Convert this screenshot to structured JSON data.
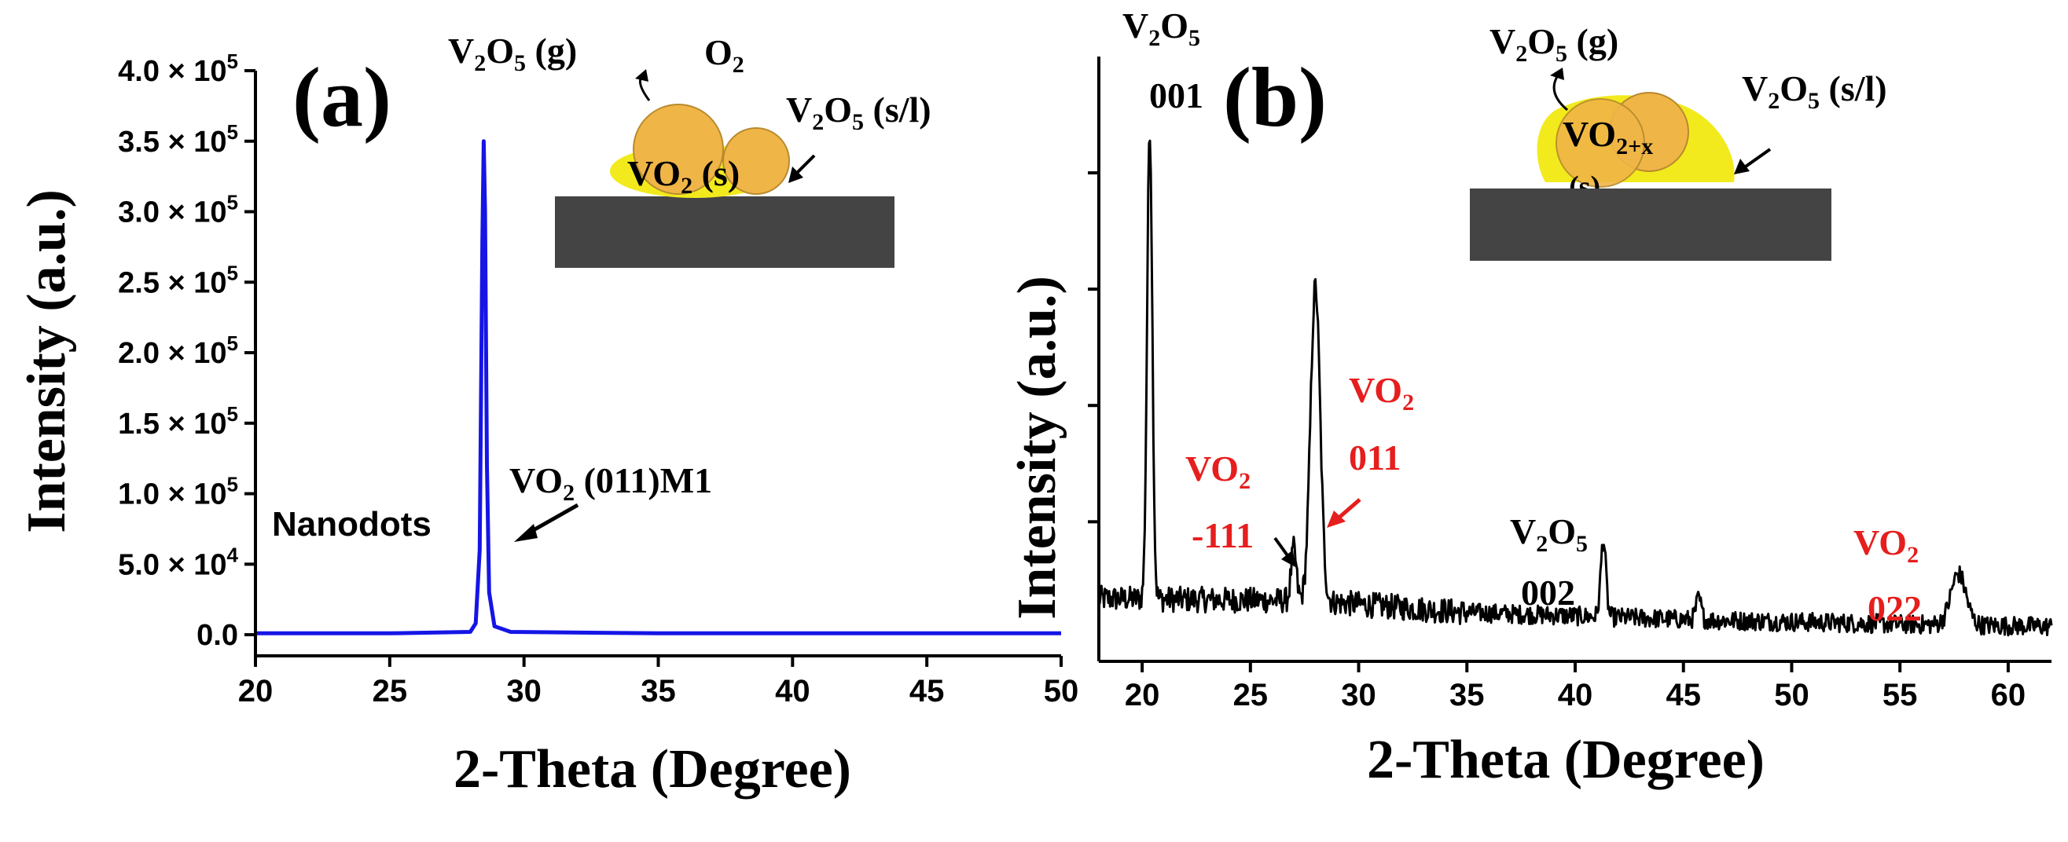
{
  "chart_data": [
    {
      "type": "line",
      "panel_label": "(a)",
      "xlabel": "2-Theta (Degree)",
      "ylabel": "Intensity (a.u.)",
      "xlim": [
        20,
        50
      ],
      "ylim": [
        -15000,
        400000
      ],
      "xticks": [
        20,
        25,
        30,
        35,
        40,
        45,
        50
      ],
      "yticks": [
        {
          "value": 0,
          "mant": "0.0",
          "exp": ""
        },
        {
          "value": 50000,
          "mant": "5.0 × 10",
          "exp": "4"
        },
        {
          "value": 100000,
          "mant": "1.0 × 10",
          "exp": "5"
        },
        {
          "value": 150000,
          "mant": "1.5 × 10",
          "exp": "5"
        },
        {
          "value": 200000,
          "mant": "2.0 × 10",
          "exp": "5"
        },
        {
          "value": 250000,
          "mant": "2.5 × 10",
          "exp": "5"
        },
        {
          "value": 300000,
          "mant": "3.0 × 10",
          "exp": "5"
        },
        {
          "value": 350000,
          "mant": "3.5 × 10",
          "exp": "5"
        },
        {
          "value": 400000,
          "mant": "4.0 × 10",
          "exp": "5"
        }
      ],
      "series": [
        {
          "name": "Nanodots",
          "color": "#1515e6",
          "x": [
            20,
            25,
            28.0,
            28.2,
            28.35,
            28.45,
            28.5,
            28.55,
            28.62,
            28.7,
            28.9,
            29.5,
            35,
            40,
            45,
            50
          ],
          "y": [
            1000,
            1000,
            2000,
            8000,
            60000,
            280000,
            350000,
            300000,
            120000,
            30000,
            6000,
            2000,
            1000,
            1000,
            1000,
            1000
          ]
        }
      ],
      "annotations": [
        {
          "id": "nanodots",
          "text": "Nanodots"
        },
        {
          "id": "peak",
          "base": "VO",
          "sub": "2",
          "rest": " (011)M1",
          "x": 28.5
        }
      ],
      "inset": {
        "gas": {
          "base": "V",
          "sub1": "2",
          "mid": "O",
          "sub2": "5",
          "rest": " (g)"
        },
        "oxygen": {
          "base": "O",
          "sub": "2"
        },
        "liquid": {
          "base": "V",
          "sub1": "2",
          "mid": "O",
          "sub2": "5",
          "rest": " (s/l)"
        },
        "particle": {
          "base": "VO",
          "sub": "2",
          "rest": " (s)"
        }
      },
      "colors": {
        "substrate": "#444444",
        "shell": "#f2ea1c",
        "particle": "#f0b547"
      }
    },
    {
      "type": "line",
      "panel_label": "(b)",
      "xlabel": "2-Theta (Degree)",
      "ylabel": "Intensity (a.u.)",
      "xlim": [
        18,
        62
      ],
      "ylim": [
        -1,
        25
      ],
      "xticks": [
        20,
        25,
        30,
        35,
        40,
        45,
        50,
        55,
        60
      ],
      "ytick_values": [
        5,
        10,
        15,
        20
      ],
      "series": [
        {
          "name": "pattern",
          "color": "#000000",
          "baseline": [
            [
              18,
              1.7
            ],
            [
              28,
              1.6
            ],
            [
              35,
              1.1
            ],
            [
              45,
              0.8
            ],
            [
              55,
              0.6
            ],
            [
              62,
              0.5
            ]
          ],
          "peaks": [
            {
              "center": 20.35,
              "height": 20.3,
              "width": 0.12
            },
            {
              "center": 27.0,
              "height": 2.2,
              "width": 0.12
            },
            {
              "center": 28.0,
              "height": 13.5,
              "width": 0.22
            },
            {
              "center": 41.3,
              "height": 3.3,
              "width": 0.12
            },
            {
              "center": 45.7,
              "height": 0.9,
              "width": 0.12
            },
            {
              "center": 57.7,
              "height": 2.2,
              "width": 0.35
            }
          ],
          "noise": 0.55
        }
      ],
      "annotations": [
        {
          "id": "v2o5-001",
          "formula": {
            "base": "V",
            "sub1": "2",
            "mid": "O",
            "sub2": "5"
          },
          "index": "001",
          "color": "#000000"
        },
        {
          "id": "vo2-m111",
          "formula": {
            "base": "VO",
            "sub": "2"
          },
          "index": "-111",
          "color": "#e61e1e"
        },
        {
          "id": "vo2-011",
          "formula": {
            "base": "VO",
            "sub": "2"
          },
          "index": "011",
          "color": "#e61e1e"
        },
        {
          "id": "v2o5-002",
          "formula": {
            "base": "V",
            "sub1": "2",
            "mid": "O",
            "sub2": "5"
          },
          "index": "002",
          "color": "#000000"
        },
        {
          "id": "vo2-022",
          "formula": {
            "base": "VO",
            "sub": "2"
          },
          "index": "022",
          "color": "#e61e1e"
        }
      ],
      "inset": {
        "gas": {
          "base": "V",
          "sub1": "2",
          "mid": "O",
          "sub2": "5",
          "rest": " (g)"
        },
        "liquid": {
          "base": "V",
          "sub1": "2",
          "mid": "O",
          "sub2": "5",
          "rest": " (s/l)"
        },
        "particle": {
          "base": "VO",
          "sub": "2+x"
        },
        "particle_state": "(s)"
      }
    }
  ]
}
